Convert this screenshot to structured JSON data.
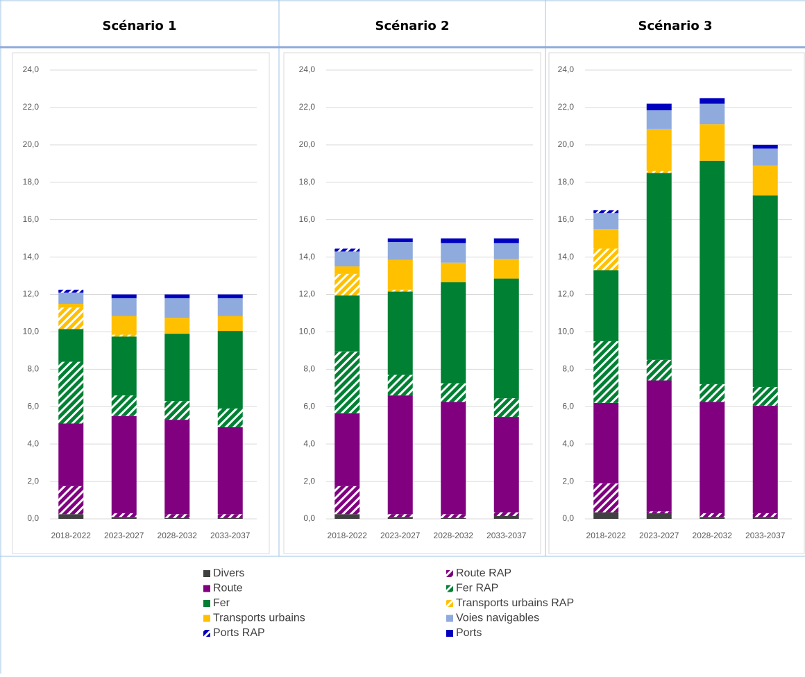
{
  "legend": [
    {
      "name": "Divers",
      "color": "#404040",
      "hatched": false
    },
    {
      "name": "Route RAP",
      "color": "#800080",
      "hatched": true
    },
    {
      "name": "Route",
      "color": "#800080",
      "hatched": false
    },
    {
      "name": "Fer RAP",
      "color": "#008033",
      "hatched": true
    },
    {
      "name": "Fer",
      "color": "#008033",
      "hatched": false
    },
    {
      "name": "Transports urbains RAP",
      "color": "#ffc000",
      "hatched": true
    },
    {
      "name": "Transports urbains",
      "color": "#ffc000",
      "hatched": false
    },
    {
      "name": "Voies navigables",
      "color": "#8faadc",
      "hatched": false
    },
    {
      "name": "Ports RAP",
      "color": "#0000c0",
      "hatched": true
    },
    {
      "name": "Ports",
      "color": "#0000c0",
      "hatched": false
    }
  ],
  "chart_data": [
    {
      "type": "bar",
      "stacked": true,
      "title": "Scénario 1",
      "categories": [
        "2018-2022",
        "2023-2027",
        "2028-2032",
        "2033-2037"
      ],
      "series": [
        {
          "values": [
            0.25,
            0.1,
            0.05,
            0.05
          ]
        },
        {
          "values": [
            1.5,
            0.2,
            0.2,
            0.2
          ]
        },
        {
          "values": [
            3.35,
            5.2,
            5.05,
            4.65
          ]
        },
        {
          "values": [
            3.3,
            1.1,
            1.0,
            1.0
          ]
        },
        {
          "values": [
            1.75,
            3.15,
            3.6,
            4.15
          ]
        },
        {
          "values": [
            1.15,
            0.1,
            0,
            0
          ]
        },
        {
          "values": [
            0.2,
            1.0,
            0.85,
            0.8
          ]
        },
        {
          "values": [
            0.6,
            0.95,
            1.05,
            0.95
          ]
        },
        {
          "values": [
            0.15,
            0,
            0,
            0
          ]
        },
        {
          "values": [
            0,
            0.2,
            0.2,
            0.2
          ]
        }
      ],
      "ylim": [
        0,
        24
      ],
      "yticks": [
        {
          "value": 0,
          "label": "0,0"
        },
        {
          "value": 2,
          "label": "2,0"
        },
        {
          "value": 4,
          "label": "4,0"
        },
        {
          "value": 6,
          "label": "6,0"
        },
        {
          "value": 8,
          "label": "8,0"
        },
        {
          "value": 10,
          "label": "10,0"
        },
        {
          "value": 12,
          "label": "12,0"
        },
        {
          "value": 14,
          "label": "14,0"
        },
        {
          "value": 16,
          "label": "16,0"
        },
        {
          "value": 18,
          "label": "18,0"
        },
        {
          "value": 20,
          "label": "20,0"
        },
        {
          "value": 22,
          "label": "22,0"
        },
        {
          "value": 24,
          "label": "24,0"
        }
      ],
      "grid": true
    },
    {
      "type": "bar",
      "stacked": true,
      "title": "Scénario 2",
      "categories": [
        "2018-2022",
        "2023-2027",
        "2028-2032",
        "2033-2037"
      ],
      "series": [
        {
          "values": [
            0.25,
            0.1,
            0.05,
            0.15
          ]
        },
        {
          "values": [
            1.5,
            0.15,
            0.2,
            0.2
          ]
        },
        {
          "values": [
            3.9,
            6.35,
            6.0,
            5.1
          ]
        },
        {
          "values": [
            3.3,
            1.1,
            1.0,
            1.0
          ]
        },
        {
          "values": [
            3.0,
            4.45,
            5.4,
            6.4
          ]
        },
        {
          "values": [
            1.15,
            0.1,
            0,
            0
          ]
        },
        {
          "values": [
            0.4,
            1.6,
            1.05,
            1.05
          ]
        },
        {
          "values": [
            0.8,
            0.95,
            1.05,
            0.85
          ]
        },
        {
          "values": [
            0.15,
            0,
            0,
            0
          ]
        },
        {
          "values": [
            0,
            0.2,
            0.25,
            0.25
          ]
        }
      ],
      "ylim": [
        0,
        24
      ],
      "yticks": [
        {
          "value": 0,
          "label": "0,0"
        },
        {
          "value": 2,
          "label": "2,0"
        },
        {
          "value": 4,
          "label": "4,0"
        },
        {
          "value": 6,
          "label": "6,0"
        },
        {
          "value": 8,
          "label": "8,0"
        },
        {
          "value": 10,
          "label": "10,0"
        },
        {
          "value": 12,
          "label": "12,0"
        },
        {
          "value": 14,
          "label": "14,0"
        },
        {
          "value": 16,
          "label": "16,0"
        },
        {
          "value": 18,
          "label": "18,0"
        },
        {
          "value": 20,
          "label": "20,0"
        },
        {
          "value": 22,
          "label": "22,0"
        },
        {
          "value": 24,
          "label": "24,0"
        }
      ],
      "grid": true
    },
    {
      "type": "bar",
      "stacked": true,
      "title": "Scénario 3",
      "categories": [
        "2018-2022",
        "2023-2027",
        "2028-2032",
        "2033-2037"
      ],
      "series": [
        {
          "values": [
            0.35,
            0.3,
            0.1,
            0.1
          ]
        },
        {
          "values": [
            1.55,
            0.1,
            0.2,
            0.2
          ]
        },
        {
          "values": [
            4.3,
            7.0,
            5.95,
            5.75
          ]
        },
        {
          "values": [
            3.3,
            1.1,
            0.95,
            1.0
          ]
        },
        {
          "values": [
            3.8,
            10.0,
            11.95,
            10.25
          ]
        },
        {
          "values": [
            1.15,
            0.1,
            0,
            0
          ]
        },
        {
          "values": [
            1.05,
            2.25,
            1.95,
            1.6
          ]
        },
        {
          "values": [
            0.85,
            1.0,
            1.1,
            0.9
          ]
        },
        {
          "values": [
            0.15,
            0,
            0,
            0
          ]
        },
        {
          "values": [
            0,
            0.35,
            0.3,
            0.2
          ]
        }
      ],
      "ylim": [
        0,
        24
      ],
      "yticks": [
        {
          "value": 0,
          "label": "0,0"
        },
        {
          "value": 2,
          "label": "2,0"
        },
        {
          "value": 4,
          "label": "4,0"
        },
        {
          "value": 6,
          "label": "6,0"
        },
        {
          "value": 8,
          "label": "8,0"
        },
        {
          "value": 10,
          "label": "10,0"
        },
        {
          "value": 12,
          "label": "12,0"
        },
        {
          "value": 14,
          "label": "14,0"
        },
        {
          "value": 16,
          "label": "16,0"
        },
        {
          "value": 18,
          "label": "18,0"
        },
        {
          "value": 20,
          "label": "20,0"
        },
        {
          "value": 22,
          "label": "22,0"
        },
        {
          "value": 24,
          "label": "24,0"
        }
      ],
      "grid": true
    }
  ]
}
